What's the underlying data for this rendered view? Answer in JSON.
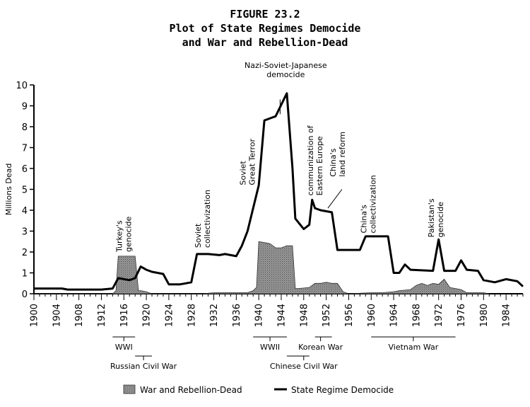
{
  "chart_data": {
    "type": "area",
    "title_lines": [
      "FIGURE 23.2",
      "Plot of State Regimes Democide",
      "and War and Rebellion-Dead"
    ],
    "ylabel": "Millions Dead",
    "xlabel": "",
    "xlim": [
      1900,
      1987
    ],
    "ylim": [
      0,
      10
    ],
    "x_ticks": [
      1900,
      1904,
      1908,
      1912,
      1916,
      1920,
      1924,
      1928,
      1932,
      1936,
      1940,
      1944,
      1948,
      1952,
      1956,
      1960,
      1964,
      1968,
      1972,
      1976,
      1980,
      1984
    ],
    "y_ticks": [
      0,
      1,
      2,
      3,
      4,
      5,
      6,
      7,
      8,
      9,
      10
    ],
    "grid": false,
    "legend_position": "bottom",
    "series": [
      {
        "name": "War and Rebellion-Dead",
        "style": "filled-area",
        "color": "#7a7a7a",
        "points": [
          [
            1900,
            0
          ],
          [
            1914,
            0
          ],
          [
            1914.6,
            0.15
          ],
          [
            1915,
            1.8
          ],
          [
            1916,
            1.8
          ],
          [
            1917,
            1.8
          ],
          [
            1918,
            1.8
          ],
          [
            1918.6,
            0.15
          ],
          [
            1919,
            0.15
          ],
          [
            1920,
            0.1
          ],
          [
            1921,
            0
          ],
          [
            1930,
            0
          ],
          [
            1932,
            0.05
          ],
          [
            1936,
            0.05
          ],
          [
            1938,
            0.05
          ],
          [
            1939,
            0.15
          ],
          [
            1939.6,
            0.3
          ],
          [
            1940,
            2.5
          ],
          [
            1941,
            2.45
          ],
          [
            1942,
            2.4
          ],
          [
            1943,
            2.2
          ],
          [
            1944,
            2.2
          ],
          [
            1945,
            2.3
          ],
          [
            1946,
            2.3
          ],
          [
            1946.5,
            0.25
          ],
          [
            1947,
            0.25
          ],
          [
            1949,
            0.3
          ],
          [
            1950,
            0.5
          ],
          [
            1951,
            0.5
          ],
          [
            1952,
            0.55
          ],
          [
            1953,
            0.5
          ],
          [
            1954,
            0.5
          ],
          [
            1955,
            0.1
          ],
          [
            1956,
            0
          ],
          [
            1960,
            0.05
          ],
          [
            1962,
            0.05
          ],
          [
            1964,
            0.1
          ],
          [
            1965,
            0.15
          ],
          [
            1967,
            0.2
          ],
          [
            1968,
            0.4
          ],
          [
            1969,
            0.5
          ],
          [
            1970,
            0.4
          ],
          [
            1971,
            0.5
          ],
          [
            1972,
            0.45
          ],
          [
            1973,
            0.7
          ],
          [
            1974,
            0.3
          ],
          [
            1976,
            0.2
          ],
          [
            1977,
            0.05
          ],
          [
            1978,
            0.05
          ],
          [
            1980,
            0.05
          ],
          [
            1981,
            0
          ]
        ]
      },
      {
        "name": "State Regime Democide",
        "style": "line",
        "color": "#000000",
        "points": [
          [
            1900,
            0.25
          ],
          [
            1905,
            0.25
          ],
          [
            1906,
            0.2
          ],
          [
            1912,
            0.2
          ],
          [
            1914,
            0.25
          ],
          [
            1915,
            0.75
          ],
          [
            1917,
            0.65
          ],
          [
            1918,
            0.75
          ],
          [
            1919,
            1.3
          ],
          [
            1920,
            1.15
          ],
          [
            1921,
            1.05
          ],
          [
            1923,
            0.95
          ],
          [
            1924,
            0.45
          ],
          [
            1926,
            0.45
          ],
          [
            1927,
            0.5
          ],
          [
            1928,
            0.55
          ],
          [
            1929,
            1.9
          ],
          [
            1931,
            1.9
          ],
          [
            1933,
            1.85
          ],
          [
            1934,
            1.9
          ],
          [
            1935,
            1.85
          ],
          [
            1936,
            1.8
          ],
          [
            1937,
            2.3
          ],
          [
            1938,
            3.0
          ],
          [
            1940,
            5.2
          ],
          [
            1941,
            8.3
          ],
          [
            1943,
            8.5
          ],
          [
            1945,
            9.6
          ],
          [
            1946,
            6.0
          ],
          [
            1946.5,
            3.6
          ],
          [
            1948,
            3.1
          ],
          [
            1949,
            3.3
          ],
          [
            1949.5,
            4.5
          ],
          [
            1950,
            4.1
          ],
          [
            1951,
            4.0
          ],
          [
            1953,
            3.9
          ],
          [
            1954,
            2.1
          ],
          [
            1958,
            2.1
          ],
          [
            1959,
            2.75
          ],
          [
            1963,
            2.75
          ],
          [
            1964,
            1.0
          ],
          [
            1965,
            1.0
          ],
          [
            1966,
            1.4
          ],
          [
            1967,
            1.15
          ],
          [
            1971,
            1.1
          ],
          [
            1972,
            2.6
          ],
          [
            1973,
            1.1
          ],
          [
            1975,
            1.1
          ],
          [
            1976,
            1.6
          ],
          [
            1977,
            1.15
          ],
          [
            1979,
            1.1
          ],
          [
            1980,
            0.65
          ],
          [
            1982,
            0.55
          ],
          [
            1984,
            0.7
          ],
          [
            1986,
            0.6
          ],
          [
            1987,
            0.35
          ]
        ]
      }
    ],
    "annotations": [
      {
        "text": [
          "Turkey's",
          "genocide"
        ],
        "x": 1916.5,
        "y": 2.0,
        "rotate": true
      },
      {
        "text": [
          "Soviet",
          "collectivization"
        ],
        "x": 1930.5,
        "y": 2.2,
        "rotate": true
      },
      {
        "text": [
          "Soviet",
          "Great Terror"
        ],
        "x": 1938.5,
        "y": 5.2,
        "rotate": true
      },
      {
        "text": [
          "Nazi-Soviet-Japanese",
          "democide"
        ],
        "x": 1944.8,
        "y": 10.2,
        "rotate": false,
        "leader": [
          1943.8,
          9.3,
          1943.8,
          8.6
        ]
      },
      {
        "text": [
          "communization of",
          "Eastern Europe"
        ],
        "x": 1950.5,
        "y": 4.7,
        "rotate": true
      },
      {
        "text": [
          "China's",
          "land reform"
        ],
        "x": 1954.5,
        "y": 5.6,
        "rotate": true,
        "leader": [
          1954.8,
          5.0,
          1952.3,
          4.1
        ]
      },
      {
        "text": [
          "China's",
          "collectivization"
        ],
        "x": 1960.0,
        "y": 2.9,
        "rotate": true
      },
      {
        "text": [
          "Pakistan's",
          "genocide"
        ],
        "x": 1972.0,
        "y": 2.7,
        "rotate": true
      }
    ],
    "period_brackets": [
      {
        "label": "WWI",
        "start": 1914,
        "end": 1918,
        "row": 1,
        "label_x": 1916
      },
      {
        "label": "Russian Civil War",
        "start": 1918,
        "end": 1921,
        "row": 2,
        "label_x": 1919.5
      },
      {
        "label": "WWII",
        "start": 1939,
        "end": 1945,
        "row": 1,
        "label_x": 1942
      },
      {
        "label": "Chinese Civil War",
        "start": 1945,
        "end": 1949,
        "row": 2,
        "label_x": 1948
      },
      {
        "label": "Korean War",
        "start": 1950,
        "end": 1953,
        "row": 1,
        "label_x": 1951
      },
      {
        "label": "Vietnam War",
        "start": 1960,
        "end": 1975,
        "row": 1,
        "label_x": 1967.5
      }
    ]
  }
}
